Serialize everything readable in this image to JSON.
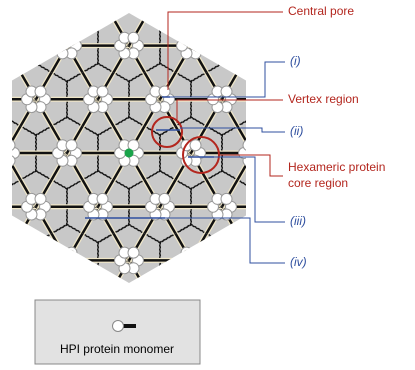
{
  "labels": {
    "central_pore": "Central pore",
    "i": "(i)",
    "vertex_region": "Vertex region",
    "ii": "(ii)",
    "hexameric_core": [
      "Hexameric protein",
      "core region"
    ],
    "iii": "(iii)",
    "iv": "(iv)"
  },
  "legend": {
    "label": "HPI protein monomer"
  }
}
